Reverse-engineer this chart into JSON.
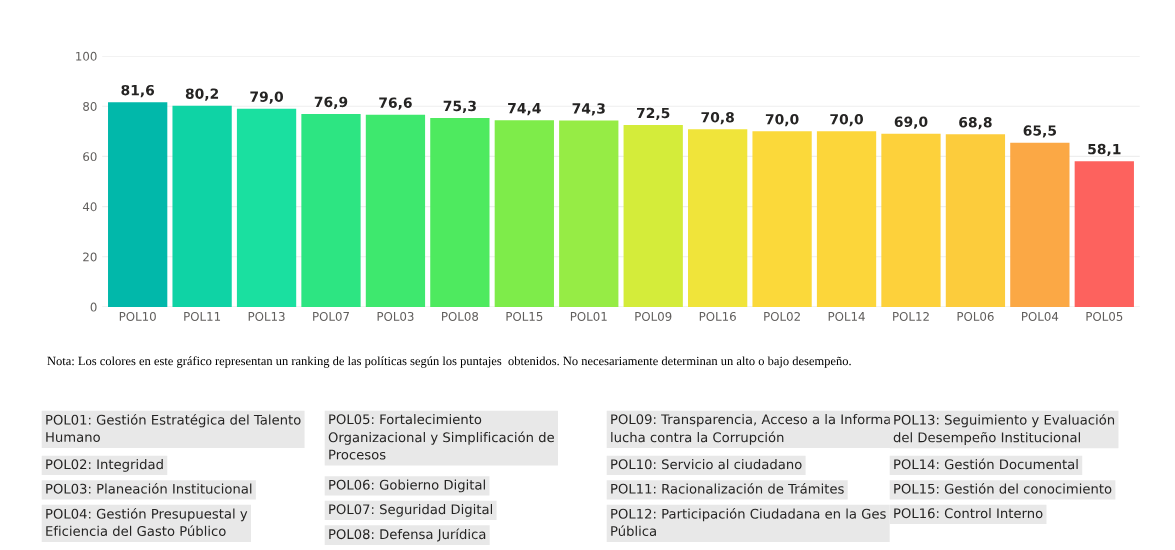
{
  "chart_data": {
    "type": "bar",
    "categories": [
      "POL10",
      "POL11",
      "POL13",
      "POL07",
      "POL03",
      "POL08",
      "POL15",
      "POL01",
      "POL09",
      "POL16",
      "POL02",
      "POL14",
      "POL12",
      "POL06",
      "POL04",
      "POL05"
    ],
    "values": [
      81.6,
      80.2,
      79.0,
      76.9,
      76.6,
      75.3,
      74.4,
      74.3,
      72.5,
      70.8,
      70.0,
      70.0,
      69.0,
      68.8,
      65.5,
      58.1
    ],
    "value_labels": [
      "81,6",
      "80,2",
      "79,0",
      "76,9",
      "76,6",
      "75,3",
      "74,4",
      "74,3",
      "72,5",
      "70,8",
      "70,0",
      "70,0",
      "69,0",
      "68,8",
      "65,5",
      "58,1"
    ],
    "colors": [
      "#01b8aa",
      "#0fd3a5",
      "#1ae0a0",
      "#2de582",
      "#3ee86e",
      "#4eea5f",
      "#7eec4a",
      "#96ec45",
      "#d4ec3a",
      "#f0e43a",
      "#fbd93a",
      "#fcd63a",
      "#fdd13b",
      "#fccc3c",
      "#fba845",
      "#fd625e"
    ],
    "ylim": [
      0,
      100
    ],
    "yticks": [
      0,
      20,
      40,
      60,
      80,
      100
    ],
    "grid": "y",
    "annotations": [
      "Nota: Los colores en este gráfico representan un ranking de las políticas según los puntajes  obtenidos. No necesariamente determinan un alto o bajo desempeño.",
      "POL01: Gestión Estratégica del Talento\nHumano",
      "POL02: Integridad",
      "POL03: Planeación Institucional",
      "POL04: Gestión Presupuestal y\nEficiencia del Gasto Público",
      "POL05: Fortalecimiento\nOrganizacional y Simplificación de\nProcesos",
      "POL06: Gobierno Digital",
      "POL07: Seguridad Digital",
      "POL08: Defensa Jurídica",
      "POL09: Transparencia, Acceso a la Informa\nlucha contra la Corrupción",
      "POL10: Servicio al ciudadano",
      "POL11: Racionalización de Trámites",
      "POL12: Participación Ciudadana en la Ges\nPública",
      "POL13: Seguimiento y Evaluación\ndel Desempeño Institucional",
      "POL14: Gestión Documental",
      "POL15: Gestión del conocimiento",
      "POL16: Control Interno"
    ]
  }
}
